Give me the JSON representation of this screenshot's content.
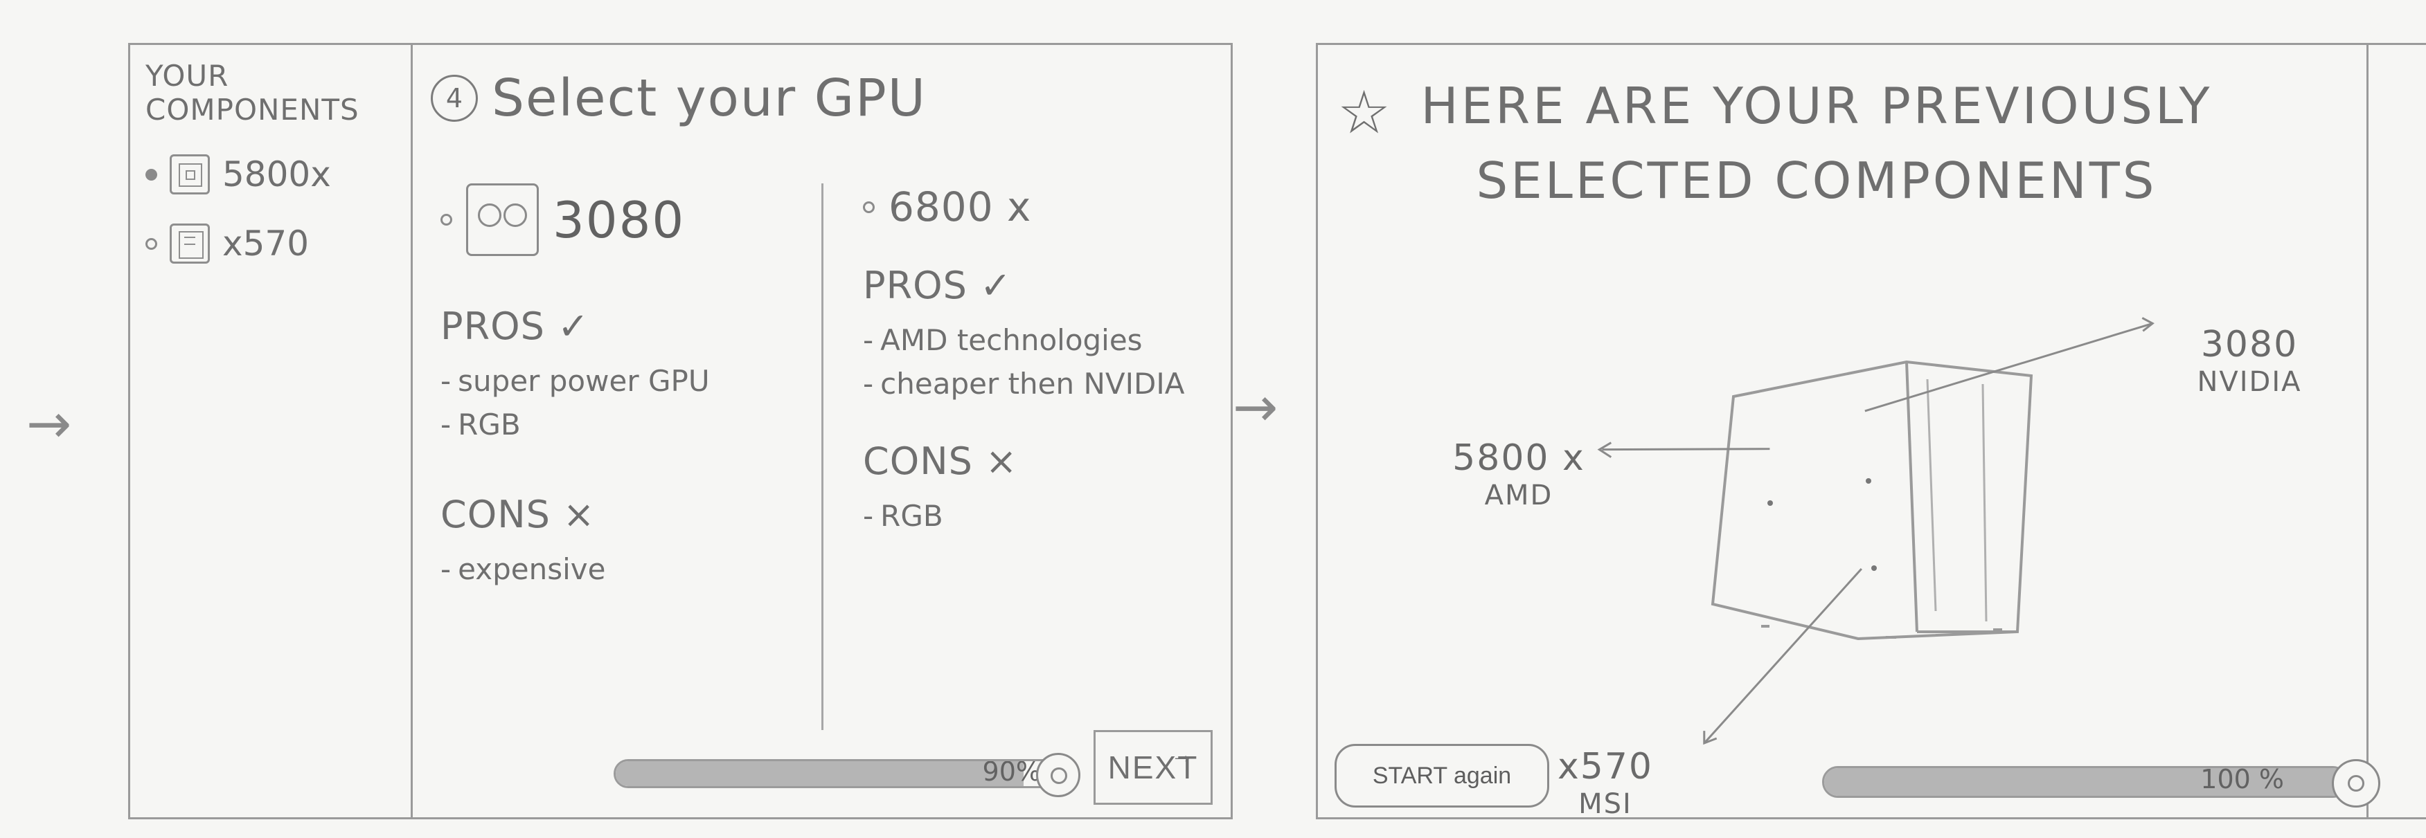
{
  "flow": {
    "lead_arrow": "→",
    "between_arrow": "→"
  },
  "step4": {
    "sidebar": {
      "title": "YOUR COMPONENTS",
      "items": [
        {
          "label": "5800x",
          "icon": "cpu-chip-icon"
        },
        {
          "label": "x570",
          "icon": "motherboard-icon"
        }
      ]
    },
    "step_number": "4",
    "title": "Select your GPU",
    "options": [
      {
        "name": "3080",
        "pros_label": "PROS ✓",
        "pros": [
          "super power GPU",
          "RGB"
        ],
        "cons_label": "CONS ×",
        "cons": [
          "expensive"
        ]
      },
      {
        "name": "6800 x",
        "pros_label": "PROS ✓",
        "pros": [
          "AMD technologies",
          "cheaper then NVIDIA"
        ],
        "cons_label": "CONS ×",
        "cons": [
          "RGB"
        ]
      }
    ],
    "progress": {
      "value": 90,
      "text": "90%"
    },
    "next_label": "NEXT",
    "next_icon": "arrow-right-icon"
  },
  "summary": {
    "title_line1": "HERE ARE YOUR PREVIOUSLY",
    "title_line2": "SELECTED COMPONENTS",
    "star_icon": "star-icon",
    "components": [
      {
        "model": "5800 x",
        "brand": "AMD"
      },
      {
        "model": "3080",
        "brand": "NVIDIA"
      },
      {
        "model": "x570",
        "brand": "MSI"
      }
    ],
    "start_again_label": "START again",
    "progress": {
      "value": 100,
      "text": "100 %"
    }
  },
  "colors": {
    "paper": "#f6f6f4",
    "pencil": "#8a8a8a",
    "fill": "#b5b5b5"
  }
}
